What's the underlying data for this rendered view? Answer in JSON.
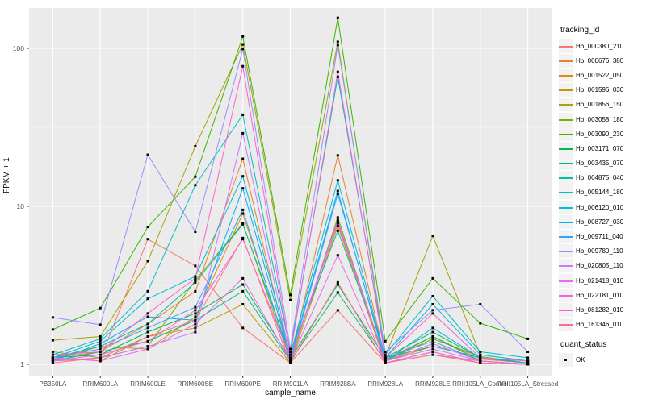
{
  "chart_data": {
    "type": "line",
    "xlabel": "sample_name",
    "ylabel": "FPKM + 1",
    "y_scale": "log10",
    "y_ticks": [
      1,
      10,
      100
    ],
    "y_minor_ticks": [
      3.162,
      31.623
    ],
    "ylim": [
      1,
      180
    ],
    "grid": "on",
    "legend_position": "right",
    "legend_title": "tracking_id",
    "categories": [
      "PB350LA",
      "RRIM600LA",
      "RRIM600LE",
      "RRIM600SE",
      "RRIM600PE",
      "RRIM901LA",
      "RRIM928BA",
      "RRIM928LA",
      "RRIM928LE",
      "RRII105LA_Control",
      "RRII105LA_Stressed"
    ],
    "series": [
      {
        "name": "Hb_000380_210",
        "color": "#F8766D",
        "values": [
          1.05,
          1.08,
          6.2,
          4.2,
          1.7,
          1.02,
          2.2,
          1.02,
          1.15,
          1.05,
          1.0
        ]
      },
      {
        "name": "Hb_000676_380",
        "color": "#EA8331",
        "values": [
          1.1,
          1.2,
          1.8,
          2.9,
          20,
          1.05,
          21,
          1.08,
          1.5,
          1.08,
          1.02
        ]
      },
      {
        "name": "Hb_001522_050",
        "color": "#D89000",
        "values": [
          1.06,
          1.3,
          1.25,
          2.0,
          9.0,
          1.1,
          8.0,
          1.05,
          1.3,
          1.1,
          1.02
        ]
      },
      {
        "name": "Hb_001596_030",
        "color": "#C09B00",
        "values": [
          1.1,
          1.05,
          1.5,
          1.7,
          2.4,
          1.02,
          7.5,
          1.02,
          1.2,
          1.02,
          1.0
        ]
      },
      {
        "name": "Hb_001856_150",
        "color": "#A3A500",
        "values": [
          1.42,
          1.5,
          4.5,
          24,
          106,
          2.55,
          110,
          1.12,
          6.5,
          1.15,
          1.05
        ]
      },
      {
        "name": "Hb_003058_180",
        "color": "#7CAE00",
        "values": [
          1.2,
          1.1,
          1.3,
          3.4,
          7.8,
          1.05,
          8.5,
          1.05,
          1.45,
          1.12,
          1.02
        ]
      },
      {
        "name": "Hb_003090_230",
        "color": "#39B600",
        "values": [
          1.66,
          2.27,
          7.4,
          15.4,
          119,
          2.75,
          156,
          1.4,
          3.5,
          1.82,
          1.45
        ]
      },
      {
        "name": "Hb_003171_070",
        "color": "#00BB4E",
        "values": [
          1.1,
          1.15,
          1.6,
          2.1,
          3.2,
          1.08,
          3.2,
          1.1,
          1.6,
          1.1,
          1.02
        ]
      },
      {
        "name": "Hb_003435_070",
        "color": "#00BF7D",
        "values": [
          1.05,
          1.2,
          1.4,
          1.9,
          2.9,
          1.05,
          2.85,
          1.05,
          1.5,
          1.05,
          1.0
        ]
      },
      {
        "name": "Hb_004875_040",
        "color": "#00C1A3",
        "values": [
          1.1,
          1.3,
          1.8,
          3.3,
          7.7,
          1.15,
          7.0,
          1.1,
          1.3,
          1.1,
          1.05
        ]
      },
      {
        "name": "Hb_005144_180",
        "color": "#00BFC4",
        "values": [
          1.15,
          1.45,
          2.9,
          13.6,
          38,
          1.2,
          66,
          1.15,
          2.7,
          1.2,
          1.1
        ]
      },
      {
        "name": "Hb_006120_010",
        "color": "#00BAE0",
        "values": [
          1.1,
          1.4,
          2.6,
          3.6,
          15.5,
          1.15,
          14.6,
          1.1,
          2.4,
          1.15,
          1.05
        ]
      },
      {
        "name": "Hb_008727_030",
        "color": "#00B0F6",
        "values": [
          1.05,
          1.35,
          2.0,
          1.9,
          13.0,
          1.1,
          12.5,
          1.05,
          1.7,
          1.1,
          1.02
        ]
      },
      {
        "name": "Hb_009711_040",
        "color": "#35A2FF",
        "values": [
          1.1,
          1.25,
          1.7,
          2.3,
          9.5,
          1.05,
          12.0,
          1.1,
          1.4,
          1.05,
          1.0
        ]
      },
      {
        "name": "Hb_009780_110",
        "color": "#9590FF",
        "values": [
          1.98,
          1.78,
          21.2,
          6.9,
          99,
          1.25,
          105,
          1.2,
          2.2,
          2.4,
          1.2
        ]
      },
      {
        "name": "Hb_020805_110",
        "color": "#C77CFF",
        "values": [
          1.05,
          1.1,
          1.3,
          1.6,
          29,
          1.1,
          8.2,
          1.05,
          1.25,
          1.05,
          1.0
        ]
      },
      {
        "name": "Hb_021418_010",
        "color": "#E76BF3",
        "values": [
          1.1,
          1.05,
          1.25,
          1.8,
          3.5,
          1.05,
          4.9,
          1.02,
          1.2,
          1.02,
          1.0
        ]
      },
      {
        "name": "Hb_022181_010",
        "color": "#FA62DB",
        "values": [
          1.05,
          1.15,
          1.4,
          2.2,
          6.2,
          1.1,
          7.8,
          1.05,
          1.35,
          1.05,
          1.0
        ]
      },
      {
        "name": "Hb_081282_010",
        "color": "#FF61CC",
        "values": [
          1.15,
          1.2,
          2.1,
          3.5,
          77,
          1.15,
          71,
          1.1,
          2.1,
          1.1,
          1.05
        ]
      },
      {
        "name": "Hb_161346_010",
        "color": "#FF6C91",
        "values": [
          1.02,
          1.1,
          1.5,
          1.9,
          6.3,
          1.02,
          3.3,
          1.02,
          1.15,
          1.02,
          1.0
        ]
      }
    ],
    "quant_legend": {
      "title": "quant_status",
      "items": [
        {
          "label": "OK",
          "marker": "black-square"
        }
      ]
    },
    "style": {
      "panel_bg": "#EBEBEB",
      "grid_color": "#FFFFFF",
      "point_color": "#000000",
      "axis_text_color": "#4D4D4D",
      "legend_key_bg": "#F2F2F2"
    }
  }
}
